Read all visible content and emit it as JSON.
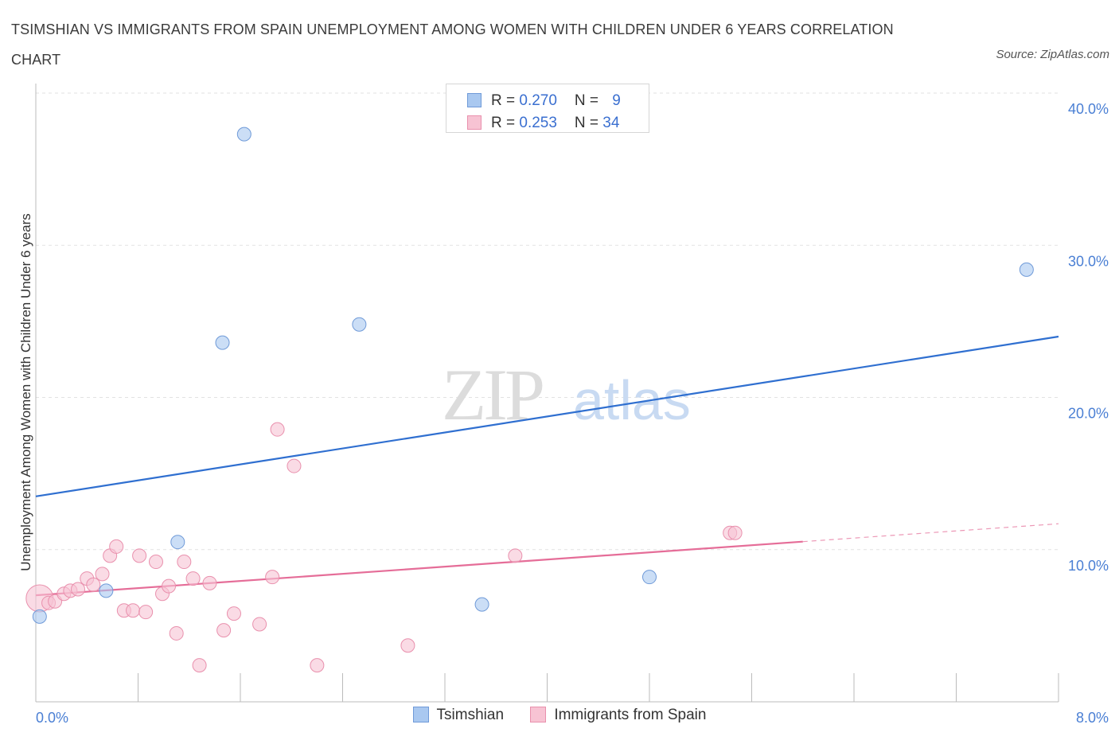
{
  "title": "TSIMSHIAN VS IMMIGRANTS FROM SPAIN UNEMPLOYMENT AMONG WOMEN WITH CHILDREN UNDER 6 YEARS CORRELATION CHART",
  "source": "Source: ZipAtlas.com",
  "watermark": "ZIPatlas",
  "legend_top": {
    "rows": [
      {
        "r_label": "R = ",
        "r_value": "0.270",
        "n_label": "N = ",
        "n_value": "9"
      },
      {
        "r_label": "R = ",
        "r_value": "0.253",
        "n_label": "N = ",
        "n_value": "34"
      }
    ]
  },
  "chart_data": {
    "type": "scatter",
    "title": "TSIMSHIAN VS IMMIGRANTS FROM SPAIN UNEMPLOYMENT AMONG WOMEN WITH CHILDREN UNDER 6 YEARS CORRELATION CHART",
    "xlabel": "",
    "ylabel": "Unemployment Among Women with Children Under 6 years",
    "xlim": [
      0,
      8
    ],
    "ylim": [
      0,
      40
    ],
    "x_tick_labels": [
      "0.0%",
      "8.0%"
    ],
    "y_ticks": [
      10,
      20,
      30,
      40
    ],
    "y_tick_labels": [
      "10.0%",
      "20.0%",
      "30.0%",
      "40.0%"
    ],
    "grid": true,
    "legend_position": "bottom",
    "series": [
      {
        "name": "Tsimshian",
        "color": "#a9c8f0",
        "edge": "#6f9ad8",
        "line_color": "#2f6fd0",
        "trend": {
          "x0": 0,
          "y0": 13.5,
          "x1": 8,
          "y1": 24.0,
          "dashed_from": null
        },
        "points": [
          {
            "x": 1.63,
            "y": 37.3
          },
          {
            "x": 7.75,
            "y": 28.4
          },
          {
            "x": 2.53,
            "y": 24.8
          },
          {
            "x": 1.46,
            "y": 23.6
          },
          {
            "x": 1.11,
            "y": 10.5
          },
          {
            "x": 0.55,
            "y": 7.3
          },
          {
            "x": 3.49,
            "y": 6.4
          },
          {
            "x": 4.8,
            "y": 8.2
          },
          {
            "x": 0.03,
            "y": 5.6
          }
        ]
      },
      {
        "name": "Immigrants from Spain",
        "color": "#f7c3d3",
        "edge": "#e990ad",
        "line_color": "#e56d98",
        "trend": {
          "x0": 0,
          "y0": 7.0,
          "x1": 8,
          "y1": 11.7,
          "dashed_from": 6.0
        },
        "points": [
          {
            "x": 0.03,
            "y": 6.8,
            "big": true
          },
          {
            "x": 0.1,
            "y": 6.5
          },
          {
            "x": 0.15,
            "y": 6.6
          },
          {
            "x": 0.22,
            "y": 7.1
          },
          {
            "x": 0.27,
            "y": 7.3
          },
          {
            "x": 0.33,
            "y": 7.4
          },
          {
            "x": 0.4,
            "y": 8.1
          },
          {
            "x": 0.45,
            "y": 7.7
          },
          {
            "x": 0.52,
            "y": 8.4
          },
          {
            "x": 0.58,
            "y": 9.6
          },
          {
            "x": 0.63,
            "y": 10.2
          },
          {
            "x": 0.69,
            "y": 6.0
          },
          {
            "x": 0.76,
            "y": 6.0
          },
          {
            "x": 0.81,
            "y": 9.6
          },
          {
            "x": 0.86,
            "y": 5.9
          },
          {
            "x": 0.94,
            "y": 9.2
          },
          {
            "x": 0.99,
            "y": 7.1
          },
          {
            "x": 1.04,
            "y": 7.6
          },
          {
            "x": 1.1,
            "y": 4.5
          },
          {
            "x": 1.16,
            "y": 9.2
          },
          {
            "x": 1.23,
            "y": 8.1
          },
          {
            "x": 1.28,
            "y": 2.4
          },
          {
            "x": 1.36,
            "y": 7.8
          },
          {
            "x": 1.47,
            "y": 4.7
          },
          {
            "x": 1.55,
            "y": 5.8
          },
          {
            "x": 1.75,
            "y": 5.1
          },
          {
            "x": 1.85,
            "y": 8.2
          },
          {
            "x": 1.89,
            "y": 17.9
          },
          {
            "x": 2.02,
            "y": 15.5
          },
          {
            "x": 2.2,
            "y": 2.4
          },
          {
            "x": 2.91,
            "y": 3.7
          },
          {
            "x": 3.75,
            "y": 9.6
          },
          {
            "x": 5.43,
            "y": 11.1
          },
          {
            "x": 5.47,
            "y": 11.1
          }
        ]
      }
    ]
  },
  "bottom_legend": {
    "items": [
      {
        "label": "Tsimshian",
        "color": "#a9c8f0",
        "edge": "#6f9ad8"
      },
      {
        "label": "Immigrants from Spain",
        "color": "#f7c3d3",
        "edge": "#e990ad"
      }
    ]
  }
}
